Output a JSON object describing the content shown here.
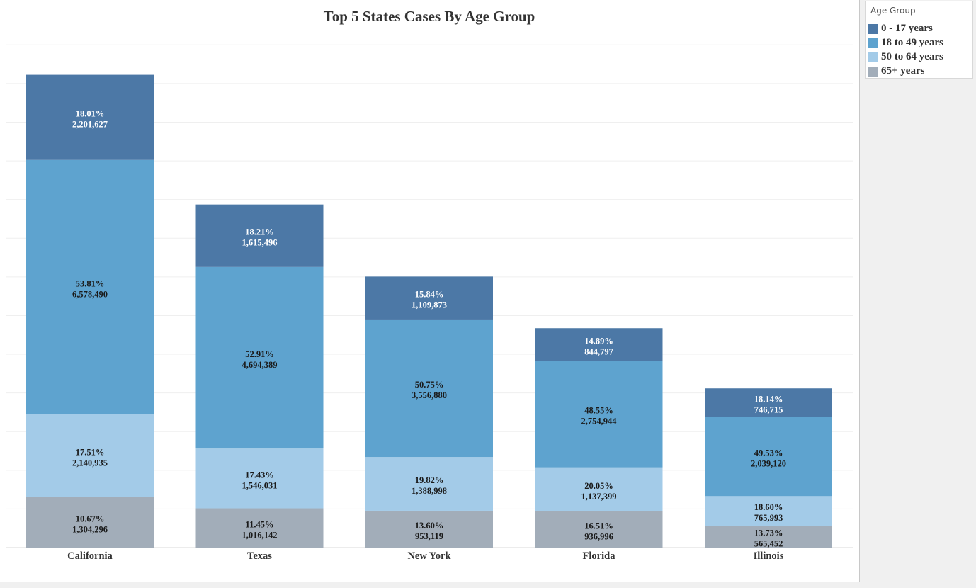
{
  "chart_data": {
    "type": "bar",
    "stacked": true,
    "title": "Top 5 States Cases By Age Group",
    "xlabel": "",
    "ylabel": "",
    "categories": [
      "California",
      "Texas",
      "New York",
      "Florida",
      "Illinois"
    ],
    "series": [
      {
        "name": "65+ years",
        "color": "#a2adb9",
        "values": [
          1304296,
          1016142,
          953119,
          936996,
          565452
        ],
        "percent_labels": [
          "10.67%",
          "11.45%",
          "13.60%",
          "16.51%",
          "13.73%"
        ],
        "value_labels": [
          "1,304,296",
          "1,016,142",
          "953,119",
          "936,996",
          "565,452"
        ]
      },
      {
        "name": "50 to 64 years",
        "color": "#a3cbe8",
        "values": [
          2140935,
          1546031,
          1388998,
          1137399,
          765993
        ],
        "percent_labels": [
          "17.51%",
          "17.43%",
          "19.82%",
          "20.05%",
          "18.60%"
        ],
        "value_labels": [
          "2,140,935",
          "1,546,031",
          "1,388,998",
          "1,137,399",
          "765,993"
        ]
      },
      {
        "name": "18 to 49 years",
        "color": "#5ea3cf",
        "values": [
          6578490,
          4694389,
          3556880,
          2754944,
          2039120
        ],
        "percent_labels": [
          "53.81%",
          "52.91%",
          "50.75%",
          "48.55%",
          "49.53%"
        ],
        "value_labels": [
          "6,578,490",
          "4,694,389",
          "3,556,880",
          "2,754,944",
          "2,039,120"
        ]
      },
      {
        "name": "0 - 17 years",
        "color": "#4c78a6",
        "values": [
          2201627,
          1615496,
          1109873,
          844797,
          746715
        ],
        "percent_labels": [
          "18.01%",
          "18.21%",
          "15.84%",
          "14.89%",
          "18.14%"
        ],
        "value_labels": [
          "2,201,627",
          "1,615,496",
          "1,109,873",
          "844,797",
          "746,715"
        ]
      }
    ],
    "ylim": [
      0,
      13500000
    ],
    "grid": true,
    "legend": {
      "title": "Age Group",
      "placement": "top-right",
      "items": [
        "0 - 17 years",
        "18 to 49 years",
        "50 to 64 years",
        "65+ years"
      ]
    }
  }
}
